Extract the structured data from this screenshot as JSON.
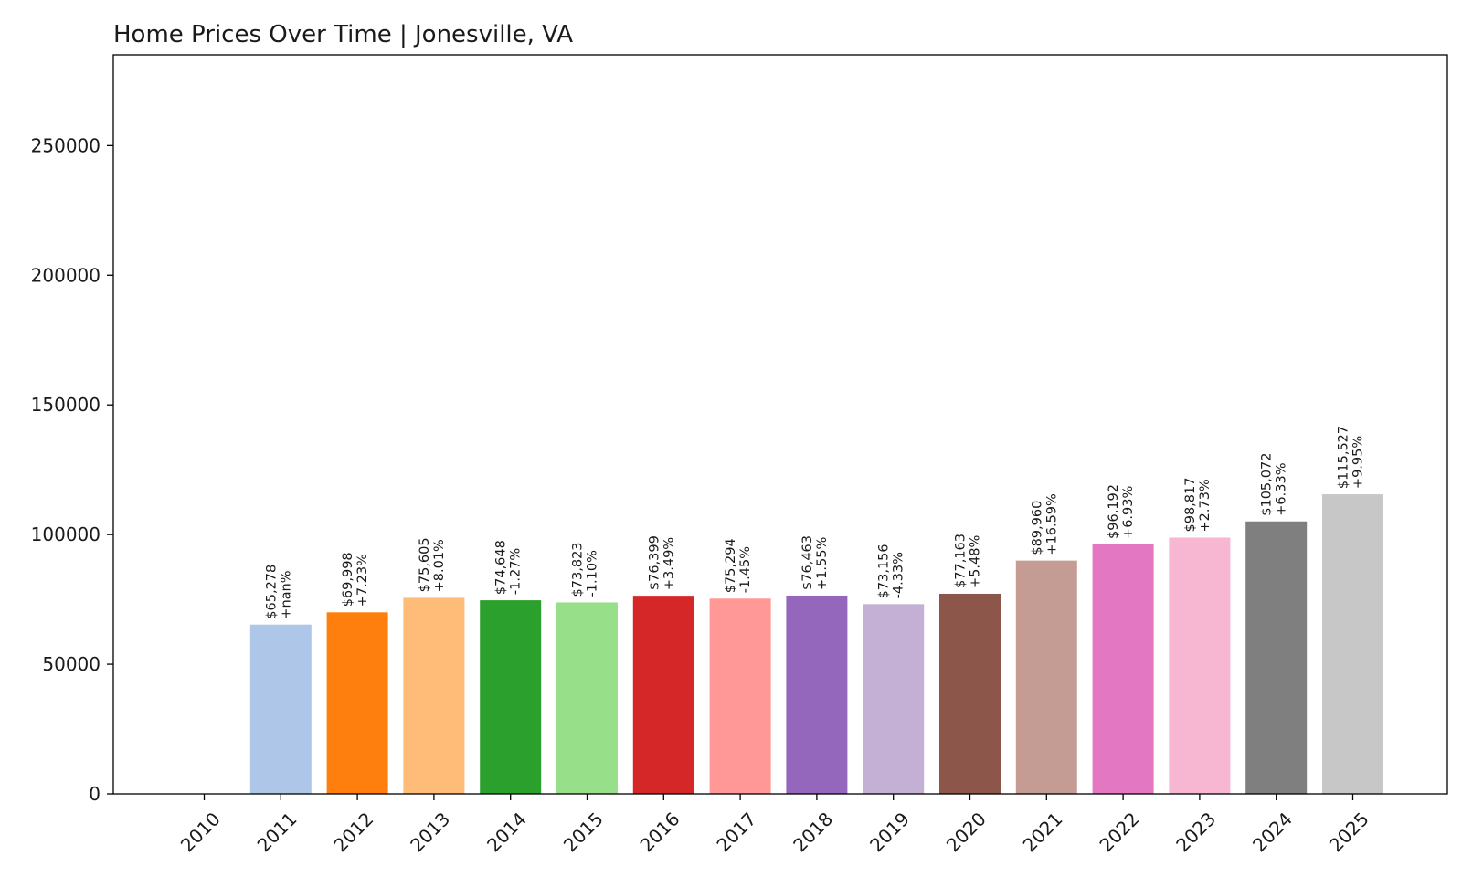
{
  "chart_data": {
    "type": "bar",
    "title": "Home Prices Over Time | Jonesville, VA",
    "xlabel": "",
    "ylabel": "",
    "ylim": [
      0,
      285000
    ],
    "yticks": [
      0,
      50000,
      100000,
      150000,
      200000,
      250000
    ],
    "ytick_labels": [
      "0",
      "50000",
      "100000",
      "150000",
      "200000",
      "250000"
    ],
    "grid": false,
    "legend": "none",
    "categories": [
      "2010",
      "2011",
      "2012",
      "2013",
      "2014",
      "2015",
      "2016",
      "2017",
      "2018",
      "2019",
      "2020",
      "2021",
      "2022",
      "2023",
      "2024",
      "2025"
    ],
    "values": [
      0,
      65278,
      69998,
      75605,
      74648,
      73823,
      76399,
      75294,
      76463,
      73156,
      77163,
      89960,
      96192,
      98817,
      105072,
      115527
    ],
    "price_labels": [
      "",
      "$65,278",
      "$69,998",
      "$75,605",
      "$74,648",
      "$73,823",
      "$76,399",
      "$75,294",
      "$76,463",
      "$73,156",
      "$77,163",
      "$89,960",
      "$96,192",
      "$98,817",
      "$105,072",
      "$115,527"
    ],
    "change_labels": [
      "",
      "+nan%",
      "+7.23%",
      "+8.01%",
      "-1.27%",
      "-1.10%",
      "+3.49%",
      "-1.45%",
      "+1.55%",
      "-4.33%",
      "+5.48%",
      "+16.59%",
      "+6.93%",
      "+2.73%",
      "+6.33%",
      "+9.95%"
    ],
    "colors": [
      "#1f77b4",
      "#aec7e8",
      "#ff7f0e",
      "#ffbb78",
      "#2ca02c",
      "#98df8a",
      "#d62728",
      "#ff9896",
      "#9467bd",
      "#c5b0d5",
      "#8c564b",
      "#c49c94",
      "#e377c2",
      "#f7b6d2",
      "#7f7f7f",
      "#c7c7c7"
    ]
  }
}
